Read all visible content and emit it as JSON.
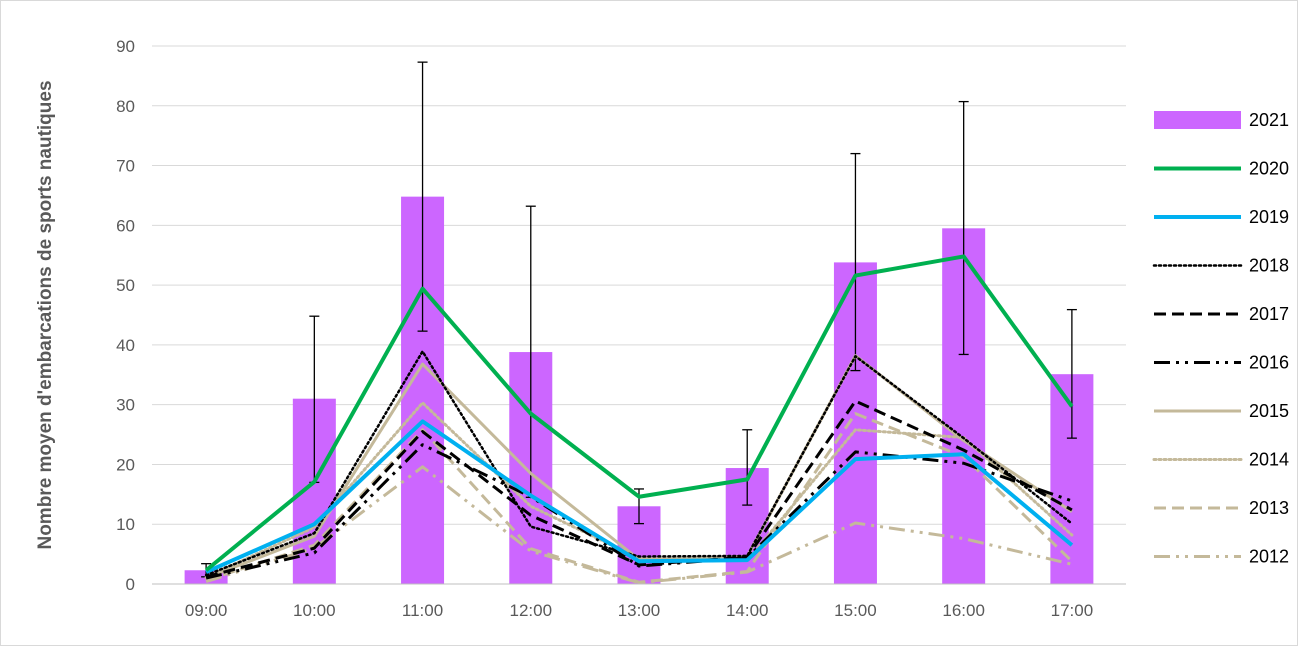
{
  "chart_data": {
    "type": "bar",
    "title": "",
    "xlabel": "",
    "ylabel": "Nombre moyen d'embarcations de sports nautiques",
    "ylim": [
      0,
      90
    ],
    "yticks": [
      0,
      10,
      20,
      30,
      40,
      50,
      60,
      70,
      80,
      90
    ],
    "grid": "horizontal",
    "legend_position": "right",
    "categories": [
      "09:00",
      "10:00",
      "11:00",
      "12:00",
      "13:00",
      "14:00",
      "15:00",
      "16:00",
      "17:00"
    ],
    "bars": {
      "name": "2021",
      "color": "#cc66ff",
      "values": [
        2.3,
        31.0,
        64.8,
        38.8,
        13.0,
        19.4,
        53.8,
        59.5,
        35.1
      ],
      "error_low": [
        1.2,
        17.0,
        42.3,
        14.5,
        10.1,
        13.2,
        35.7,
        38.4,
        24.4
      ],
      "error_high": [
        3.4,
        44.8,
        87.3,
        63.2,
        15.9,
        25.8,
        72.0,
        80.7,
        45.9
      ]
    },
    "series": [
      {
        "name": "2020",
        "color": "#00b050",
        "dash": "solid",
        "width": 4,
        "values": [
          2.3,
          17.1,
          49.4,
          28.5,
          14.6,
          17.5,
          51.6,
          54.8,
          29.7
        ]
      },
      {
        "name": "2019",
        "color": "#00b0f0",
        "dash": "solid",
        "width": 4,
        "values": [
          2.0,
          10.0,
          27.2,
          14.8,
          3.8,
          4.0,
          20.9,
          21.7,
          6.5
        ]
      },
      {
        "name": "2018",
        "color": "#000000",
        "dash": "dot",
        "width": 2.5,
        "values": [
          1.5,
          8.5,
          38.9,
          9.6,
          4.6,
          4.7,
          38.1,
          24.4,
          10.1
        ]
      },
      {
        "name": "2017",
        "color": "#000000",
        "dash": "dash",
        "width": 3,
        "values": [
          1.2,
          6.0,
          25.5,
          11.5,
          3.2,
          4.5,
          30.6,
          22.4,
          12.4
        ]
      },
      {
        "name": "2016",
        "color": "#000000",
        "dash": "dashdotdot",
        "width": 3,
        "values": [
          1.0,
          5.2,
          23.3,
          14.6,
          3.0,
          4.4,
          22.1,
          20.2,
          13.9
        ]
      },
      {
        "name": "2015",
        "color": "#c4b99a",
        "dash": "solid",
        "width": 3,
        "values": [
          1.0,
          8.0,
          36.8,
          18.5,
          4.1,
          4.6,
          38.2,
          24.0,
          12.1
        ]
      },
      {
        "name": "2014",
        "color": "#c4b99a",
        "dash": "dot",
        "width": 3,
        "values": [
          1.1,
          9.5,
          30.3,
          13.0,
          4.3,
          3.9,
          25.8,
          24.5,
          8.2
        ]
      },
      {
        "name": "2013",
        "color": "#c4b99a",
        "dash": "dash",
        "width": 3,
        "values": [
          0.6,
          6.5,
          25.8,
          5.9,
          0.3,
          2.1,
          28.5,
          21.3,
          3.8
        ]
      },
      {
        "name": "2012",
        "color": "#c4b99a",
        "dash": "dashdotdot",
        "width": 3,
        "values": [
          0.4,
          6.0,
          19.6,
          5.5,
          0.2,
          2.0,
          10.2,
          7.6,
          3.3
        ]
      }
    ]
  }
}
